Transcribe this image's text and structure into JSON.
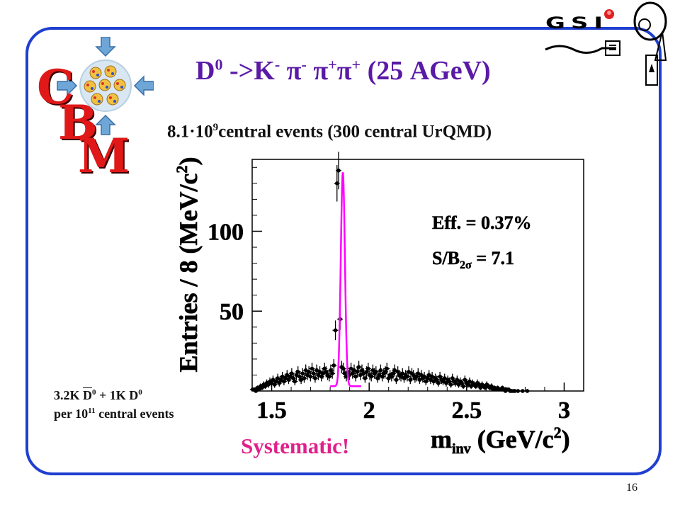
{
  "slide": {
    "title_main": "D",
    "title_sup0": "0",
    "title_arrow": " ->K",
    "title_sup1": "-",
    "title_pi1": " π",
    "title_sup2": "-",
    "title_pi2": "  π",
    "title_sup3": "+",
    "title_pi3": "π",
    "title_sup4": "+",
    "title_tail": " (25 AGeV)",
    "subtitle_a": "8.1·10",
    "subtitle_sup": "9",
    "subtitle_b": "central events (300 central UrQMD)",
    "note_line1_a": "3.2K ",
    "note_line1_dbar": "D",
    "note_line1_sup1": "0",
    "note_line1_b": " + 1K D",
    "note_line1_sup2": "0",
    "note_line2_a": "per 10",
    "note_line2_sup": "11",
    "note_line2_b": " central events",
    "systematic": "Systematic!",
    "page_number": "16",
    "logo_cbm": [
      "C",
      "B",
      "M"
    ],
    "logo_gsi": "GSI"
  },
  "chart_data": {
    "type": "scatter",
    "xlabel_main": "m",
    "xlabel_sub": "inv",
    "xlabel_unit": "(GeV/c",
    "xlabel_unit_sup": "2",
    "xlabel_close": ")",
    "ylabel": "Entries / 8 (MeV/c",
    "ylabel_sup": "2",
    "ylabel_close": ")",
    "xlim": [
      1.4,
      3.1
    ],
    "ylim": [
      0,
      145
    ],
    "x_ticks": [
      1.5,
      2,
      2.5,
      3
    ],
    "x_tick_labels": [
      "1.5",
      "2",
      "2.5",
      "3"
    ],
    "y_ticks": [
      50,
      100
    ],
    "y_tick_labels": [
      "50",
      "100"
    ],
    "stats": {
      "eff_label": "Eff. = 0.37%",
      "sb_label_a": "S/B",
      "sb_label_sub": "2σ",
      "sb_label_b": " = 7.1"
    },
    "fit_color": "#ff00ff",
    "marker_color": "#000000",
    "series": [
      {
        "x": [
          1.403,
          1.411,
          1.419,
          1.427,
          1.435,
          1.443,
          1.451,
          1.459,
          1.467,
          1.475,
          1.483,
          1.491,
          1.499,
          1.507,
          1.515,
          1.523,
          1.531,
          1.539,
          1.547,
          1.555,
          1.563,
          1.571,
          1.579,
          1.587,
          1.595,
          1.603,
          1.611,
          1.619,
          1.627,
          1.635,
          1.643,
          1.651,
          1.659,
          1.667,
          1.675,
          1.683,
          1.691,
          1.699,
          1.707,
          1.715,
          1.723,
          1.731,
          1.739,
          1.747,
          1.755,
          1.763,
          1.771,
          1.779,
          1.787,
          1.795,
          1.803,
          1.811,
          1.819,
          1.827,
          1.835,
          1.843,
          1.851,
          1.859,
          1.867,
          1.875,
          1.883,
          1.891,
          1.899,
          1.907,
          1.915,
          1.923,
          1.931,
          1.939,
          1.947,
          1.955,
          1.963,
          1.971,
          1.979,
          1.987,
          1.995,
          2.003,
          2.011,
          2.019,
          2.027,
          2.035,
          2.043,
          2.051,
          2.059,
          2.067,
          2.075,
          2.083,
          2.091,
          2.099,
          2.107,
          2.115,
          2.123,
          2.131,
          2.139,
          2.147,
          2.155,
          2.163,
          2.171,
          2.179,
          2.187,
          2.195,
          2.203,
          2.211,
          2.219,
          2.227,
          2.235,
          2.243,
          2.251,
          2.259,
          2.267,
          2.275,
          2.283,
          2.291,
          2.299,
          2.307,
          2.315,
          2.323,
          2.331,
          2.339,
          2.347,
          2.355,
          2.363,
          2.371,
          2.379,
          2.387,
          2.395,
          2.403,
          2.411,
          2.419,
          2.427,
          2.435,
          2.443,
          2.451,
          2.459,
          2.467,
          2.475,
          2.483,
          2.491,
          2.499,
          2.507,
          2.515,
          2.523,
          2.531,
          2.539,
          2.547,
          2.555,
          2.563,
          2.571,
          2.579,
          2.587,
          2.595,
          2.603,
          2.611,
          2.619,
          2.627,
          2.635,
          2.643,
          2.651,
          2.659,
          2.667,
          2.675,
          2.683,
          2.691,
          2.699,
          2.707,
          2.715,
          2.723,
          2.731,
          2.739,
          2.747,
          2.763,
          2.787,
          2.811
        ],
        "y": [
          1,
          1,
          0,
          2,
          1,
          3,
          2,
          4,
          3,
          5,
          4,
          6,
          5,
          7,
          4,
          6,
          8,
          5,
          7,
          9,
          6,
          8,
          10,
          7,
          9,
          11,
          8,
          6,
          10,
          12,
          9,
          7,
          11,
          8,
          13,
          10,
          12,
          9,
          14,
          11,
          8,
          13,
          10,
          12,
          9,
          11,
          14,
          12,
          10,
          9,
          13,
          11,
          16,
          38,
          130,
          138,
          45,
          15,
          14,
          11,
          9,
          12,
          10,
          14,
          11,
          13,
          9,
          12,
          15,
          10,
          13,
          11,
          8,
          12,
          14,
          10,
          9,
          13,
          11,
          12,
          8,
          10,
          13,
          9,
          11,
          12,
          14,
          8,
          10,
          9,
          11,
          13,
          7,
          12,
          10,
          9,
          11,
          8,
          10,
          9,
          12,
          7,
          11,
          10,
          8,
          9,
          11,
          7,
          10,
          8,
          9,
          6,
          8,
          10,
          7,
          9,
          6,
          8,
          7,
          5,
          9,
          7,
          6,
          8,
          5,
          7,
          6,
          4,
          8,
          6,
          5,
          7,
          4,
          6,
          5,
          3,
          7,
          5,
          4,
          6,
          3,
          5,
          4,
          3,
          5,
          4,
          2,
          4,
          3,
          2,
          4,
          3,
          2,
          3,
          1,
          2,
          1,
          2,
          1,
          1,
          2,
          1,
          0,
          1,
          1,
          0,
          0,
          0,
          0,
          0,
          0,
          0
        ],
        "name": ""
      }
    ]
  }
}
